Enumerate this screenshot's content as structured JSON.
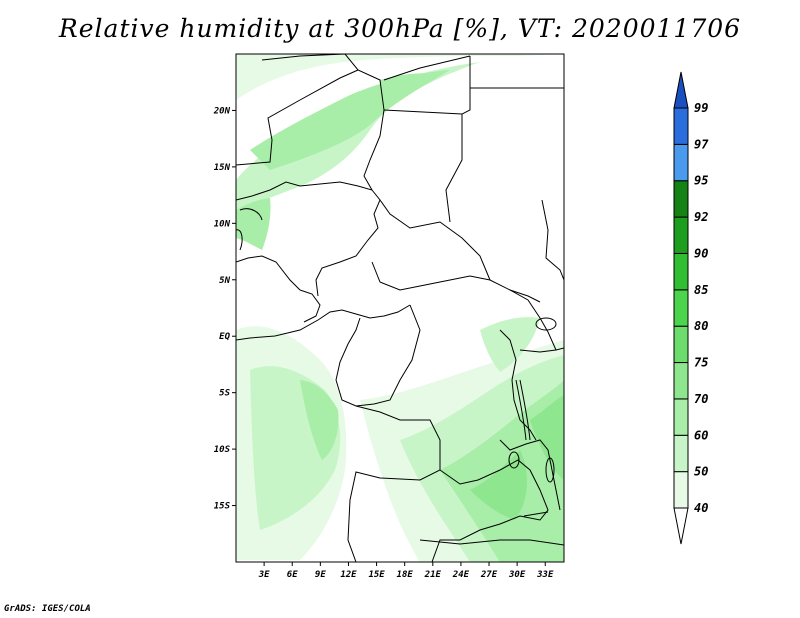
{
  "title": "Relative humidity at 300hPa [%], VT: 2020011706",
  "credit": "GrADS: IGES/COLA",
  "map": {
    "lat_labels": [
      "20N",
      "15N",
      "10N",
      "5N",
      "EQ",
      "5S",
      "10S",
      "15S"
    ],
    "lat_values": [
      20,
      15,
      10,
      5,
      0,
      -5,
      -10,
      -15
    ],
    "lon_labels": [
      "3E",
      "6E",
      "9E",
      "12E",
      "15E",
      "18E",
      "21E",
      "24E",
      "27E",
      "30E",
      "33E"
    ],
    "lon_values": [
      3,
      6,
      9,
      12,
      15,
      18,
      21,
      24,
      27,
      30,
      33
    ],
    "lon_range": [
      0,
      35
    ],
    "lat_range": [
      -20,
      25
    ]
  },
  "colorbar": {
    "levels": [
      "40",
      "50",
      "60",
      "70",
      "75",
      "80",
      "85",
      "90",
      "92",
      "95",
      "97",
      "99"
    ],
    "colors": [
      "#ffffff",
      "#e6fae6",
      "#c8f5c8",
      "#a8eda8",
      "#8ee68e",
      "#6cdc6c",
      "#4cd44c",
      "#32be32",
      "#1e9e1e",
      "#148214",
      "#4a9aee",
      "#2a6ede",
      "#1a4fc0"
    ]
  }
}
